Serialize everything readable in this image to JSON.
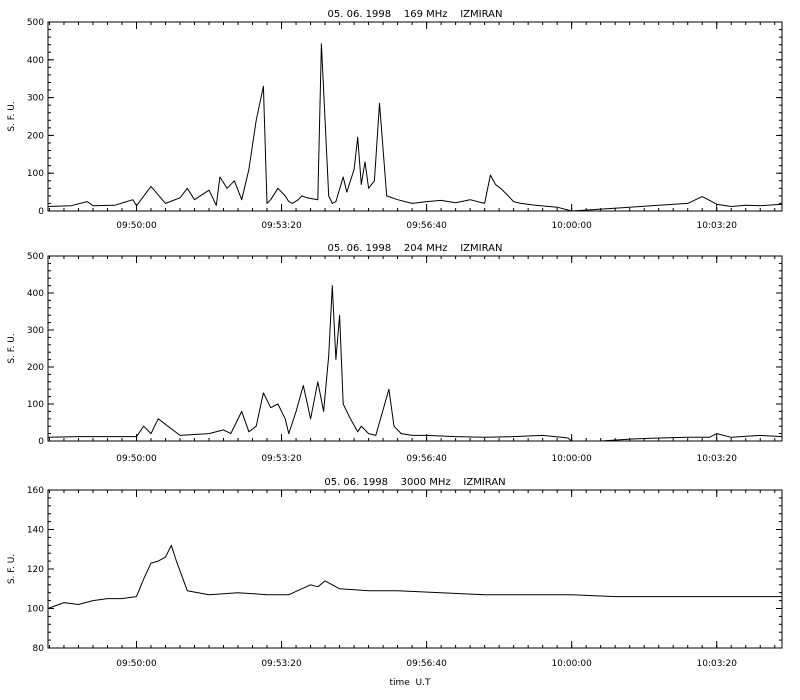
{
  "chart_data": [
    {
      "type": "line",
      "title": "05. 06. 1998    169 MHz    IZMIRAN",
      "ylabel": "S. F. U.",
      "xlabel": "",
      "ylim": [
        0,
        500
      ],
      "yticks": [
        "0",
        "100",
        "200",
        "300",
        "400",
        "500"
      ],
      "ytick_values": [
        0,
        100,
        200,
        300,
        400,
        500
      ],
      "xlim": [
        "09:47:58",
        "10:04:50"
      ],
      "xticks": [
        "09:50:00",
        "09:53:20",
        "09:56:40",
        "10:00:00",
        "10:03:20"
      ],
      "series": [
        {
          "x": [
            "09:47:58",
            "09:48:30",
            "09:48:52",
            "09:49:00",
            "09:49:30",
            "09:49:55",
            "09:50:00",
            "09:50:20",
            "09:50:40",
            "09:51:00",
            "09:51:10",
            "09:51:20",
            "09:51:40",
            "09:51:50",
            "09:51:55",
            "09:52:05",
            "09:52:15",
            "09:52:25",
            "09:52:35",
            "09:52:45",
            "09:52:55",
            "09:53:00",
            "09:53:05",
            "09:53:15",
            "09:53:25",
            "09:53:30",
            "09:53:35",
            "09:53:43",
            "09:53:48",
            "09:53:55",
            "09:54:10",
            "09:54:15",
            "09:54:25",
            "09:54:30",
            "09:54:35",
            "09:54:45",
            "09:54:50",
            "09:55:00",
            "09:55:05",
            "09:55:10",
            "09:55:15",
            "09:55:20",
            "09:55:28",
            "09:55:35",
            "09:55:45",
            "09:56:00",
            "09:56:20",
            "09:56:40",
            "09:57:00",
            "09:57:20",
            "09:57:40",
            "09:58:00",
            "09:58:08",
            "09:58:15",
            "09:58:22",
            "09:58:30",
            "09:58:40",
            "09:58:50",
            "09:59:10",
            "09:59:40",
            "10:00:00",
            "10:00:40",
            "10:01:20",
            "10:02:00",
            "10:02:40",
            "10:03:00",
            "10:03:20",
            "10:03:40",
            "10:04:00",
            "10:04:20",
            "10:04:50"
          ],
          "y": [
            12,
            14,
            25,
            14,
            15,
            30,
            14,
            65,
            20,
            35,
            60,
            30,
            55,
            15,
            90,
            60,
            80,
            30,
            110,
            240,
            330,
            20,
            30,
            60,
            40,
            25,
            20,
            30,
            40,
            35,
            30,
            442,
            40,
            20,
            25,
            90,
            50,
            110,
            195,
            70,
            130,
            60,
            80,
            285,
            40,
            30,
            20,
            25,
            28,
            22,
            30,
            20,
            95,
            70,
            60,
            45,
            25,
            20,
            15,
            10,
            -5,
            5,
            10,
            15,
            20,
            38,
            18,
            12,
            15,
            14,
            18
          ]
        }
      ]
    },
    {
      "type": "line",
      "title": "05. 06. 1998    204 MHz    IZMIRAN",
      "ylabel": "S. F. U.",
      "xlabel": "",
      "ylim": [
        0,
        500
      ],
      "yticks": [
        "0",
        "100",
        "200",
        "300",
        "400",
        "500"
      ],
      "ytick_values": [
        0,
        100,
        200,
        300,
        400,
        500
      ],
      "xlim": [
        "09:47:58",
        "10:04:50"
      ],
      "xticks": [
        "09:50:00",
        "09:53:20",
        "09:56:40",
        "10:00:00",
        "10:03:20"
      ],
      "series": [
        {
          "x": [
            "09:47:58",
            "09:48:40",
            "09:49:20",
            "09:50:00",
            "09:50:10",
            "09:50:20",
            "09:50:30",
            "09:51:00",
            "09:51:40",
            "09:52:00",
            "09:52:10",
            "09:52:25",
            "09:52:35",
            "09:52:45",
            "09:52:55",
            "09:53:05",
            "09:53:15",
            "09:53:25",
            "09:53:30",
            "09:53:40",
            "09:53:50",
            "09:54:00",
            "09:54:10",
            "09:54:18",
            "09:54:25",
            "09:54:30",
            "09:54:35",
            "09:54:40",
            "09:54:45",
            "09:54:55",
            "09:55:05",
            "09:55:10",
            "09:55:20",
            "09:55:30",
            "09:55:48",
            "09:55:55",
            "09:56:05",
            "09:56:20",
            "09:56:40",
            "09:57:20",
            "09:58:00",
            "09:58:40",
            "09:59:20",
            "09:59:55",
            "10:00:00",
            "10:00:40",
            "10:01:20",
            "10:02:00",
            "10:02:40",
            "10:03:10",
            "10:03:20",
            "10:03:40",
            "10:04:20",
            "10:04:50"
          ],
          "y": [
            10,
            12,
            12,
            12,
            40,
            20,
            60,
            15,
            20,
            30,
            20,
            80,
            25,
            40,
            130,
            90,
            100,
            60,
            20,
            80,
            150,
            60,
            160,
            80,
            230,
            420,
            220,
            340,
            100,
            60,
            25,
            40,
            20,
            15,
            140,
            40,
            20,
            15,
            15,
            12,
            10,
            12,
            15,
            8,
            -8,
            -5,
            5,
            8,
            10,
            10,
            20,
            10,
            15,
            12
          ]
        }
      ]
    },
    {
      "type": "line",
      "title": "05. 06. 1998    3000 MHz    IZMIRAN",
      "ylabel": "S. F. U.",
      "xlabel": "time  U.T",
      "ylim": [
        80,
        160
      ],
      "yticks": [
        "80",
        "100",
        "120",
        "140",
        "160"
      ],
      "ytick_values": [
        80,
        100,
        120,
        140,
        160
      ],
      "xlim": [
        "09:47:58",
        "10:04:50"
      ],
      "xticks": [
        "09:50:00",
        "09:53:20",
        "09:56:40",
        "10:00:00",
        "10:03:20"
      ],
      "series": [
        {
          "x": [
            "09:47:58",
            "09:48:20",
            "09:48:40",
            "09:49:00",
            "09:49:20",
            "09:49:40",
            "09:50:00",
            "09:50:10",
            "09:50:20",
            "09:50:30",
            "09:50:40",
            "09:50:48",
            "09:50:55",
            "09:51:10",
            "09:51:40",
            "09:52:20",
            "09:53:00",
            "09:53:30",
            "09:54:00",
            "09:54:10",
            "09:54:20",
            "09:54:40",
            "09:55:20",
            "09:56:00",
            "09:57:00",
            "09:58:00",
            "09:59:00",
            "10:00:00",
            "10:01:00",
            "10:02:00",
            "10:03:00",
            "10:04:00",
            "10:04:50"
          ],
          "y": [
            100,
            103,
            102,
            104,
            105,
            105,
            106,
            115,
            123,
            124,
            126,
            132,
            124,
            109,
            107,
            108,
            107,
            107,
            112,
            111,
            114,
            110,
            109,
            109,
            108,
            107,
            107,
            107,
            106,
            106,
            106,
            106,
            106
          ]
        }
      ]
    }
  ]
}
